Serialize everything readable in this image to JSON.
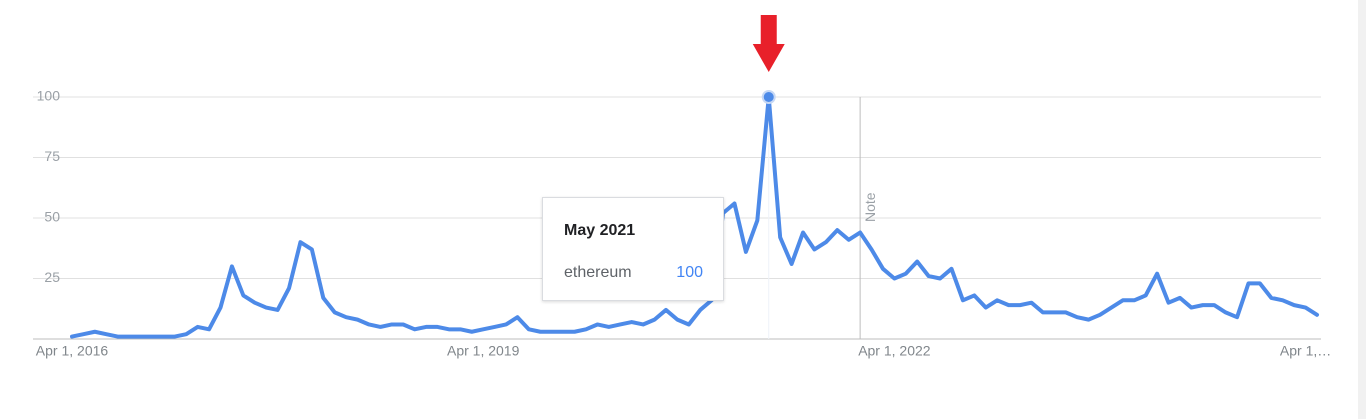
{
  "chart_data": {
    "type": "line",
    "categories": [
      "Apr 1, 2016",
      null,
      null,
      null,
      null,
      null,
      null,
      null,
      null,
      null,
      null,
      null,
      null,
      null,
      null,
      null,
      null,
      null,
      null,
      null,
      null,
      null,
      null,
      null,
      null,
      null,
      null,
      null,
      null,
      null,
      null,
      null,
      null,
      null,
      null,
      null,
      "Apr 1, 2019",
      null,
      null,
      null,
      null,
      null,
      null,
      null,
      null,
      null,
      null,
      null,
      null,
      null,
      null,
      null,
      null,
      null,
      null,
      null,
      null,
      null,
      null,
      null,
      null,
      null,
      null,
      null,
      null,
      null,
      null,
      null,
      null,
      null,
      null,
      null,
      "Apr 1, 2022",
      null,
      null,
      null,
      null,
      null,
      null,
      null,
      null,
      null,
      null,
      null,
      null,
      null,
      null,
      null,
      null,
      null,
      null,
      null,
      null,
      null,
      null,
      null,
      null,
      null,
      null,
      null,
      null,
      null,
      null,
      null,
      null,
      null,
      null,
      null,
      "Apr 1,…",
      null
    ],
    "series": [
      {
        "name": "ethereum",
        "color": "#4d8ae8",
        "values": [
          1,
          2,
          3,
          2,
          1,
          1,
          1,
          1,
          1,
          1,
          2,
          5,
          4,
          13,
          30,
          18,
          15,
          13,
          12,
          21,
          40,
          37,
          17,
          11,
          9,
          8,
          6,
          5,
          6,
          6,
          4,
          5,
          5,
          4,
          4,
          3,
          4,
          5,
          6,
          9,
          4,
          3,
          3,
          3,
          3,
          4,
          6,
          5,
          6,
          7,
          6,
          8,
          12,
          8,
          6,
          12,
          16,
          52,
          56,
          36,
          49,
          100,
          42,
          31,
          44,
          37,
          40,
          45,
          41,
          44,
          37,
          29,
          25,
          27,
          32,
          26,
          25,
          29,
          16,
          18,
          13,
          16,
          14,
          14,
          15,
          11,
          11,
          11,
          9,
          8,
          10,
          13,
          16,
          16,
          18,
          27,
          15,
          17,
          13,
          14,
          14,
          11,
          9,
          23,
          23,
          17,
          16,
          14,
          13,
          10
        ]
      }
    ],
    "ylim": [
      0,
      100
    ],
    "yticks": [
      25,
      50,
      75,
      100
    ],
    "grid": true,
    "tooltip": {
      "title": "May 2021"
    },
    "annotation": "Note"
  }
}
